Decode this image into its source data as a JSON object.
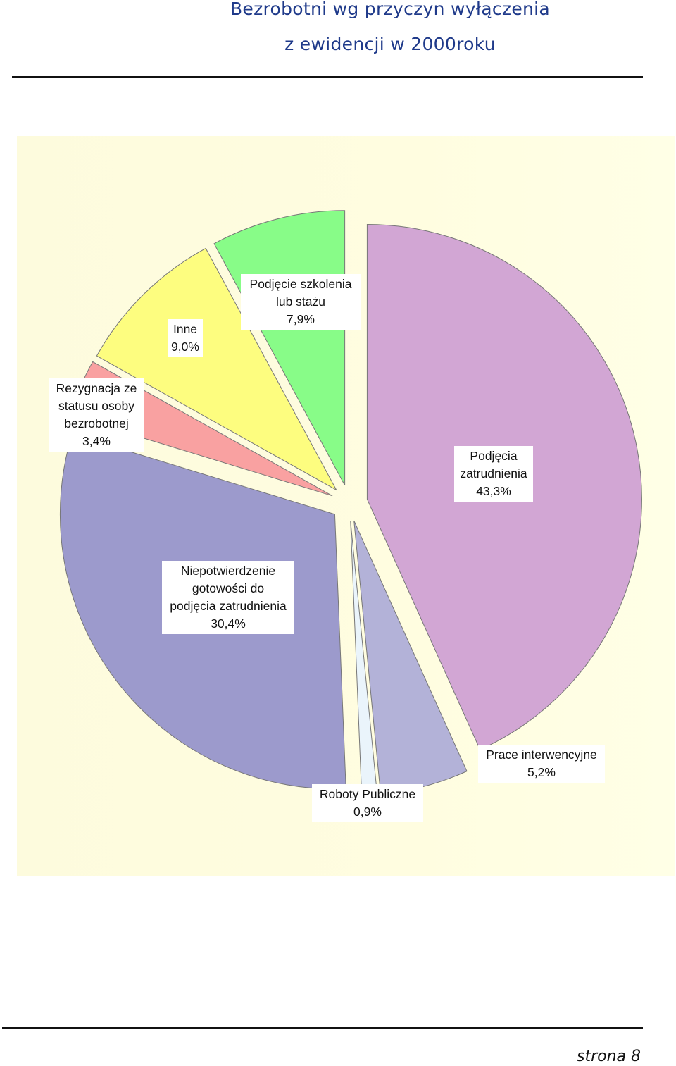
{
  "title": {
    "line1": "Bezrobotni wg przyczyn wyłączenia",
    "line2": "z ewidencji w 2000roku"
  },
  "footer": {
    "text": "strona  8"
  },
  "chart_data": {
    "type": "pie",
    "exploded": true,
    "legend": "none",
    "slices": [
      {
        "label_lines": [
          "Podjęcia",
          "zatrudnienia",
          "43,3%"
        ],
        "value": 43.3,
        "color": "#d2a6d4"
      },
      {
        "label_lines": [
          "Prace interwencyjne",
          "5,2%"
        ],
        "value": 5.2,
        "color": "#b3b2d8"
      },
      {
        "label_lines": [
          "Roboty Publiczne",
          "0,9%"
        ],
        "value": 0.9,
        "color": "#eaf4fb"
      },
      {
        "label_lines": [
          "Niepotwierdzenie",
          "gotowości do",
          "podjęcia zatrudnienia",
          "30,4%"
        ],
        "value": 30.4,
        "color": "#9c9acc"
      },
      {
        "label_lines": [
          "Rezygnacja ze",
          "statusu osoby",
          "bezrobotnej",
          "3,4%"
        ],
        "value": 3.4,
        "color": "#f9a1a1"
      },
      {
        "label_lines": [
          "Inne",
          "9,0%"
        ],
        "value": 9.0,
        "color": "#fdfd7f"
      },
      {
        "label_lines": [
          "Podjęcie szkolenia",
          "lub stażu",
          "7,9%"
        ],
        "value": 7.9,
        "color": "#88fc88"
      }
    ]
  }
}
